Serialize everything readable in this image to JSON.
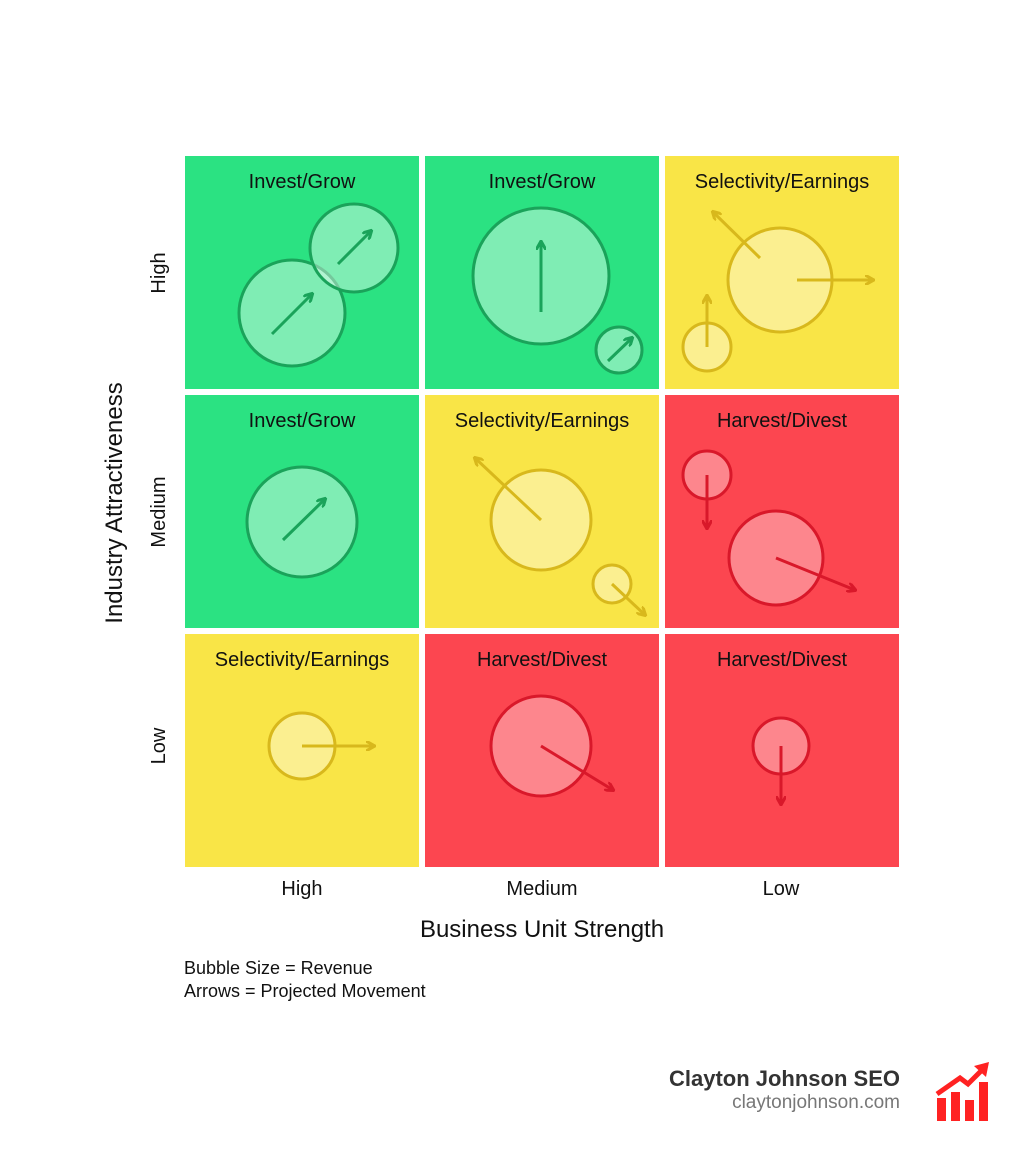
{
  "x_axis": {
    "title": "Business Unit Strength",
    "labels": [
      "High",
      "Medium",
      "Low"
    ]
  },
  "y_axis": {
    "title": "Industry Attractiveness",
    "labels": [
      "High",
      "Medium",
      "Low"
    ]
  },
  "colors": {
    "green": "#2be282",
    "yellow": "#f9e547",
    "red": "#fc4650"
  },
  "cells": [
    {
      "label": "Invest/Grow",
      "color": "green",
      "bubbles": [
        {
          "size": "large",
          "arrow": "up-right"
        },
        {
          "size": "medium",
          "arrow": "up-right"
        }
      ]
    },
    {
      "label": "Invest/Grow",
      "color": "green",
      "bubbles": [
        {
          "size": "large",
          "arrow": "up"
        },
        {
          "size": "small",
          "arrow": "up-right"
        }
      ]
    },
    {
      "label": "Selectivity/Earnings",
      "color": "yellow",
      "bubbles": [
        {
          "size": "large",
          "arrow": "right and up-left"
        },
        {
          "size": "small",
          "arrow": "up"
        }
      ]
    },
    {
      "label": "Invest/Grow",
      "color": "green",
      "bubbles": [
        {
          "size": "large",
          "arrow": "up-right"
        }
      ]
    },
    {
      "label": "Selectivity/Earnings",
      "color": "yellow",
      "bubbles": [
        {
          "size": "large",
          "arrow": "up-left"
        },
        {
          "size": "small",
          "arrow": "down-right"
        }
      ]
    },
    {
      "label": "Harvest/Divest",
      "color": "red",
      "bubbles": [
        {
          "size": "small",
          "arrow": "down"
        },
        {
          "size": "large",
          "arrow": "down-right"
        }
      ]
    },
    {
      "label": "Selectivity/Earnings",
      "color": "yellow",
      "bubbles": [
        {
          "size": "medium",
          "arrow": "right"
        }
      ]
    },
    {
      "label": "Harvest/Divest",
      "color": "red",
      "bubbles": [
        {
          "size": "large",
          "arrow": "down-right"
        }
      ]
    },
    {
      "label": "Harvest/Divest",
      "color": "red",
      "bubbles": [
        {
          "size": "small",
          "arrow": "down"
        }
      ]
    }
  ],
  "legend": [
    "Bubble Size = Revenue",
    "Arrows = Projected Movement"
  ],
  "branding": {
    "name": "Clayton Johnson SEO",
    "url": "claytonjohnson.com"
  }
}
